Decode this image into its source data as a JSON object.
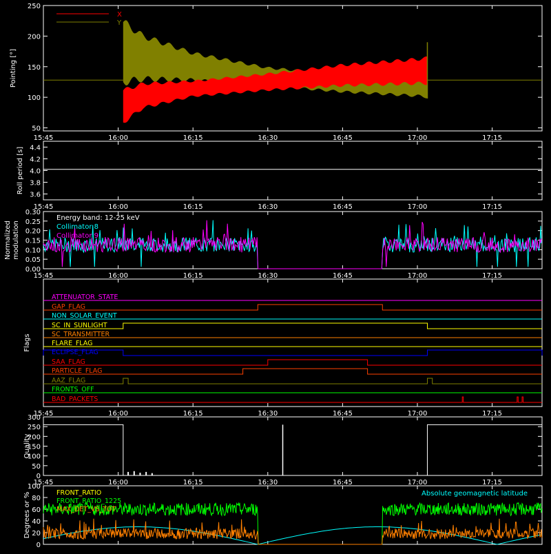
{
  "chart_data": [
    {
      "type": "line",
      "ylabel": "Pointing [°]",
      "y_ticks": [
        "50",
        "100",
        "150",
        "200",
        "250"
      ],
      "ylim": [
        45,
        250
      ],
      "x_ticks": [
        "15:45",
        "16:00",
        "16:15",
        "16:30",
        "16:45",
        "17:00",
        "17:15"
      ],
      "legend_placement": "top-left",
      "series": [
        {
          "name": "X",
          "color": "#ff0000",
          "envelope": [
            {
              "t": "16:01",
              "low": 55,
              "high": 115
            },
            {
              "t": "16:05",
              "low": 80,
              "high": 125
            },
            {
              "t": "16:15",
              "low": 100,
              "high": 128
            },
            {
              "t": "16:30",
              "low": 110,
              "high": 140
            },
            {
              "t": "16:45",
              "low": 117,
              "high": 155
            },
            {
              "t": "17:00",
              "low": 120,
              "high": 165
            },
            {
              "t": "17:02",
              "low": 120,
              "high": 167
            }
          ]
        },
        {
          "name": "Y",
          "color": "#808000",
          "envelope": [
            {
              "t": "16:01",
              "low": 118,
              "high": 230
            },
            {
              "t": "16:05",
              "low": 125,
              "high": 205
            },
            {
              "t": "16:15",
              "low": 125,
              "high": 175
            },
            {
              "t": "16:30",
              "low": 117,
              "high": 150
            },
            {
              "t": "16:45",
              "low": 107,
              "high": 140
            },
            {
              "t": "17:00",
              "low": 100,
              "high": 138
            },
            {
              "t": "17:02",
              "low": 98,
              "high": 135
            }
          ]
        }
      ],
      "flat_value": 128,
      "active_range": [
        "16:01",
        "17:02"
      ]
    },
    {
      "type": "line",
      "ylabel": "Roll period [s]",
      "y_ticks": [
        "3.6",
        "3.8",
        "4.0",
        "4.2",
        "4.4"
      ],
      "ylim": [
        3.5,
        4.5
      ],
      "x_ticks": [
        "15:45",
        "16:00",
        "16:15",
        "16:30",
        "16:45",
        "17:00",
        "17:15"
      ],
      "series": [
        {
          "name": "",
          "color": "#ffffff",
          "value": 4.02
        }
      ]
    },
    {
      "type": "line",
      "ylabel": "Normalized modulation",
      "ylabel_lines": [
        "Normalized",
        "modulation"
      ],
      "y_ticks": [
        "0.00",
        "0.05",
        "0.10",
        "0.15",
        "0.20",
        "0.25",
        "0.30"
      ],
      "ylim": [
        0,
        0.3
      ],
      "x_ticks": [
        "15:45",
        "16:00",
        "16:15",
        "16:30",
        "16:45",
        "17:00",
        "17:15"
      ],
      "legend_placement": "top-left",
      "legend_title": "Energy band: 12-25 keV",
      "series": [
        {
          "name": "Collimator 8",
          "color": "#00ffff"
        },
        {
          "name": "Collimator 9",
          "color": "#ff00ff"
        }
      ],
      "active_ranges": [
        [
          "15:45",
          "16:28"
        ],
        [
          "16:53",
          "17:25"
        ]
      ],
      "baseline": 0.11,
      "off_value": 0.0
    },
    {
      "type": "line",
      "ylabel": "Flags",
      "x_ticks": [
        "15:45",
        "16:00",
        "16:15",
        "16:30",
        "16:45",
        "17:00",
        "17:15"
      ],
      "flags": [
        {
          "name": "ATTENUATOR_STATE",
          "color": "#ff00ff",
          "on": []
        },
        {
          "name": "GAP_FLAG",
          "color": "#ff4000",
          "on": [
            [
              "16:28",
              "16:53"
            ]
          ]
        },
        {
          "name": "NON_SOLAR_EVENT",
          "color": "#00ffff",
          "on": []
        },
        {
          "name": "SC_IN_SUNLIGHT",
          "color": "#ffff00",
          "on": [
            [
              "16:01",
              "17:02"
            ]
          ]
        },
        {
          "name": "SC_TRANSMITTER",
          "color": "#ff8000",
          "on": []
        },
        {
          "name": "FLARE_FLAG",
          "color": "#ffff00",
          "on": []
        },
        {
          "name": "ECLIPSE_FLAG",
          "color": "#0000ff",
          "on": [
            [
              "15:45",
              "16:01"
            ],
            [
              "17:02",
              "17:25"
            ]
          ]
        },
        {
          "name": "SAA_FLAG",
          "color": "#ff0000",
          "on": [
            [
              "16:30",
              "16:50"
            ]
          ]
        },
        {
          "name": "PARTICLE_FLAG",
          "color": "#ff4000",
          "on": [
            [
              "16:25",
              "16:50"
            ]
          ]
        },
        {
          "name": "AAZ_FLAG",
          "color": "#808000",
          "on": [
            [
              "16:01",
              "16:02"
            ],
            [
              "17:02",
              "17:03"
            ]
          ]
        },
        {
          "name": "FRONTS_OFF",
          "color": "#00ff00",
          "on": []
        },
        {
          "name": "BAD_PACKETS",
          "color": "#ff0000",
          "on": [
            [
              "17:09",
              "17:09"
            ],
            [
              "17:20",
              "17:20"
            ],
            [
              "17:21",
              "17:21"
            ]
          ]
        }
      ]
    },
    {
      "type": "line",
      "ylabel": "Quality",
      "y_ticks": [
        "0",
        "50",
        "100",
        "150",
        "200",
        "250",
        "300"
      ],
      "ylim": [
        0,
        300
      ],
      "x_ticks": [
        "15:45",
        "16:00",
        "16:15",
        "16:30",
        "16:45",
        "17:00",
        "17:15"
      ],
      "series": [
        {
          "name": "",
          "color": "#ffffff",
          "segments": [
            {
              "from": "15:45",
              "to": "16:01",
              "value": 260
            },
            {
              "from": "17:02",
              "to": "17:25",
              "value": 260
            }
          ],
          "spike": {
            "t": "16:33",
            "value": 260
          }
        }
      ]
    },
    {
      "type": "line",
      "ylabel": "Degrees or %",
      "y_ticks": [
        "0",
        "20",
        "40",
        "60",
        "80",
        "100"
      ],
      "ylim": [
        0,
        100
      ],
      "x_ticks": [],
      "legend_placement": "top-left",
      "annotation": "Absolute geomagnetic latitude",
      "annotation_color": "#00ffff",
      "series": [
        {
          "name": "FRONT_RATIO",
          "color": "#ffff00"
        },
        {
          "name": "FRONT_RATIO_1225",
          "color": "#00ff00",
          "level": 60
        },
        {
          "name": "MAX_DET_VS_TOT",
          "color": "#ff8000",
          "level": 18
        },
        {
          "name": "",
          "color": "#00ffff",
          "role": "latitude"
        }
      ],
      "active_ranges": [
        [
          "15:45",
          "16:28"
        ],
        [
          "16:53",
          "17:25"
        ]
      ]
    }
  ]
}
